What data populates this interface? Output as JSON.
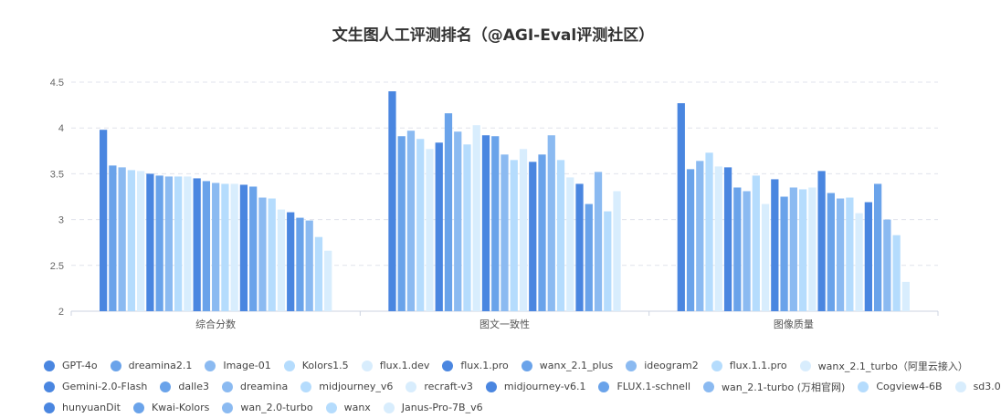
{
  "chart_data": {
    "type": "bar",
    "title": "文生图人工评测排名（@AGI-Eval评测社区）",
    "xlabel": "",
    "ylabel": "",
    "ylim": [
      2,
      4.5
    ],
    "yticks": [
      "2",
      "2.5",
      "3",
      "3.5",
      "4",
      "4.5"
    ],
    "grid": true,
    "legend_placement": "bottom",
    "categories": [
      "综合分数",
      "图文一致性",
      "图像质量"
    ],
    "palette": [
      "#4a86e0",
      "#6aa3ea",
      "#8bbaf1",
      "#b5dcfd",
      "#d8edfd"
    ],
    "series": [
      {
        "name": "GPT-4o",
        "values": [
          3.98,
          4.4,
          4.27
        ]
      },
      {
        "name": "dreamina2.1",
        "values": [
          3.59,
          3.91,
          3.55
        ]
      },
      {
        "name": "Image-01",
        "values": [
          3.57,
          3.97,
          3.64
        ]
      },
      {
        "name": "Kolors1.5",
        "values": [
          3.54,
          3.88,
          3.73
        ]
      },
      {
        "name": "flux.1.dev",
        "values": [
          3.53,
          3.77,
          3.58
        ]
      },
      {
        "name": "flux.1.pro",
        "values": [
          3.5,
          3.84,
          3.57
        ]
      },
      {
        "name": "wanx_2.1_plus",
        "values": [
          3.48,
          4.16,
          3.35
        ]
      },
      {
        "name": "ideogram2",
        "values": [
          3.47,
          3.96,
          3.31
        ]
      },
      {
        "name": "flux.1.1.pro",
        "values": [
          3.47,
          3.82,
          3.48
        ]
      },
      {
        "name": "wanx_2.1_turbo（阿里云接入）",
        "values": [
          3.47,
          4.03,
          3.17
        ]
      },
      {
        "name": "Gemini-2.0-Flash",
        "values": [
          3.45,
          3.92,
          3.44
        ]
      },
      {
        "name": "dalle3",
        "values": [
          3.42,
          3.91,
          3.25
        ]
      },
      {
        "name": "dreamina",
        "values": [
          3.4,
          3.71,
          3.35
        ]
      },
      {
        "name": "midjourney_v6",
        "values": [
          3.39,
          3.65,
          3.33
        ]
      },
      {
        "name": "recraft-v3",
        "values": [
          3.39,
          3.77,
          3.35
        ]
      },
      {
        "name": "midjourney-v6.1",
        "values": [
          3.38,
          3.63,
          3.53
        ]
      },
      {
        "name": "FLUX.1-schnell",
        "values": [
          3.36,
          3.71,
          3.29
        ]
      },
      {
        "name": "wan_2.1-turbo (万相官网)",
        "values": [
          3.24,
          3.92,
          3.23
        ]
      },
      {
        "name": "Cogview4-6B",
        "values": [
          3.23,
          3.65,
          3.24
        ]
      },
      {
        "name": "sd3.0",
        "values": [
          3.11,
          3.46,
          3.07
        ]
      },
      {
        "name": "hunyuanDit",
        "values": [
          3.08,
          3.39,
          3.19
        ]
      },
      {
        "name": "Kwai-Kolors",
        "values": [
          3.02,
          3.17,
          3.39
        ]
      },
      {
        "name": "wan_2.0-turbo",
        "values": [
          2.99,
          3.52,
          3.0
        ]
      },
      {
        "name": "wanx",
        "values": [
          2.81,
          3.09,
          2.83
        ]
      },
      {
        "name": "Janus-Pro-7B_v6",
        "values": [
          2.66,
          3.31,
          2.32
        ]
      }
    ]
  }
}
